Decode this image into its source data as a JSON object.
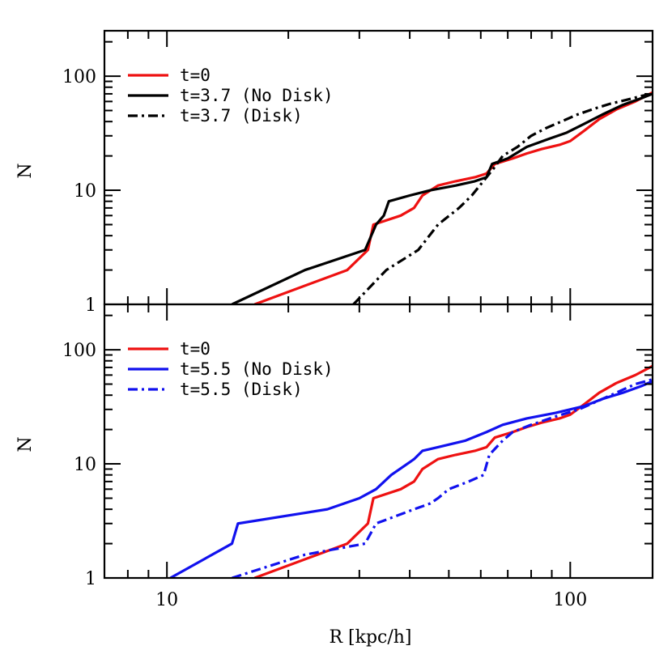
{
  "chart_data": [
    {
      "type": "line",
      "panel": "top",
      "xscale": "log",
      "yscale": "log",
      "xlim": [
        7,
        160
      ],
      "ylim": [
        1,
        250
      ],
      "xlabel": "R [kpc/h]",
      "ylabel": "N",
      "yticks": [
        1,
        10,
        100
      ],
      "yticklabels": [
        "1",
        "10",
        "100"
      ],
      "xticks": [
        10,
        100
      ],
      "xticklabels": [
        "10",
        "100"
      ],
      "show_xticklabels": false,
      "legend_position": "top-left",
      "series": [
        {
          "name": "t=0",
          "color": "#ee1111",
          "style": "solid",
          "points": [
            [
              16.5,
              1
            ],
            [
              28,
              2
            ],
            [
              31.5,
              3
            ],
            [
              32.5,
              5
            ],
            [
              38,
              6
            ],
            [
              41,
              7
            ],
            [
              43,
              9
            ],
            [
              47,
              11
            ],
            [
              52,
              12
            ],
            [
              58,
              13
            ],
            [
              62,
              14
            ],
            [
              65,
              17
            ],
            [
              72,
              19
            ],
            [
              78,
              21
            ],
            [
              85,
              23
            ],
            [
              94,
              25
            ],
            [
              100,
              27
            ],
            [
              108,
              33
            ],
            [
              118,
              42
            ],
            [
              130,
              51
            ],
            [
              145,
              60
            ],
            [
              160,
              72
            ]
          ]
        },
        {
          "name": "t=3.7 (No Disk)",
          "color": "#000000",
          "style": "solid",
          "points": [
            [
              14.5,
              1
            ],
            [
              22,
              2
            ],
            [
              31,
              3
            ],
            [
              33,
              5
            ],
            [
              34.5,
              6
            ],
            [
              35.5,
              8
            ],
            [
              40,
              9
            ],
            [
              45,
              10
            ],
            [
              52,
              11
            ],
            [
              58,
              12
            ],
            [
              62,
              13
            ],
            [
              64,
              17
            ],
            [
              70,
              19
            ],
            [
              78,
              24
            ],
            [
              88,
              28
            ],
            [
              98,
              32
            ],
            [
              108,
              38
            ],
            [
              120,
              46
            ],
            [
              135,
              56
            ],
            [
              150,
              64
            ],
            [
              160,
              70
            ]
          ]
        },
        {
          "name": "t=3.7 (Disk)",
          "color": "#000000",
          "style": "dashdot",
          "points": [
            [
              29,
              1
            ],
            [
              35,
              2
            ],
            [
              42,
              3
            ],
            [
              47,
              5
            ],
            [
              53,
              7
            ],
            [
              57,
              9
            ],
            [
              62,
              13
            ],
            [
              65,
              16
            ],
            [
              68,
              20
            ],
            [
              74,
              24
            ],
            [
              80,
              30
            ],
            [
              87,
              35
            ],
            [
              95,
              40
            ],
            [
              104,
              46
            ],
            [
              115,
              52
            ],
            [
              125,
              57
            ],
            [
              138,
              62
            ],
            [
              150,
              67
            ],
            [
              160,
              70
            ]
          ]
        }
      ]
    },
    {
      "type": "line",
      "panel": "bottom",
      "xscale": "log",
      "yscale": "log",
      "xlim": [
        7,
        160
      ],
      "ylim": [
        1,
        250
      ],
      "xlabel": "R [kpc/h]",
      "ylabel": "N",
      "yticks": [
        1,
        10,
        100
      ],
      "yticklabels": [
        "1",
        "10",
        "100"
      ],
      "xticks": [
        10,
        100
      ],
      "xticklabels": [
        "10",
        "100"
      ],
      "show_xticklabels": true,
      "legend_position": "top-left",
      "series": [
        {
          "name": "t=0",
          "color": "#ee1111",
          "style": "solid",
          "points": [
            [
              16.5,
              1
            ],
            [
              28,
              2
            ],
            [
              31.5,
              3
            ],
            [
              32.5,
              5
            ],
            [
              38,
              6
            ],
            [
              41,
              7
            ],
            [
              43,
              9
            ],
            [
              47,
              11
            ],
            [
              52,
              12
            ],
            [
              58,
              13
            ],
            [
              62,
              14
            ],
            [
              65,
              17
            ],
            [
              72,
              19
            ],
            [
              78,
              21
            ],
            [
              85,
              23
            ],
            [
              94,
              25
            ],
            [
              100,
              27
            ],
            [
              108,
              33
            ],
            [
              118,
              42
            ],
            [
              130,
              51
            ],
            [
              145,
              60
            ],
            [
              160,
              72
            ]
          ]
        },
        {
          "name": "t=5.5 (No Disk)",
          "color": "#1111ee",
          "style": "solid",
          "points": [
            [
              10.2,
              1
            ],
            [
              14.5,
              2
            ],
            [
              15,
              3
            ],
            [
              25,
              4
            ],
            [
              30,
              5
            ],
            [
              33,
              6
            ],
            [
              36,
              8
            ],
            [
              41,
              11
            ],
            [
              43,
              13
            ],
            [
              47,
              14
            ],
            [
              55,
              16
            ],
            [
              62,
              19
            ],
            [
              68,
              22
            ],
            [
              78,
              25
            ],
            [
              92,
              28
            ],
            [
              108,
              32
            ],
            [
              120,
              37
            ],
            [
              135,
              42
            ],
            [
              150,
              48
            ],
            [
              160,
              53
            ]
          ]
        },
        {
          "name": "t=5.5 (Disk)",
          "color": "#1111ee",
          "style": "dashdot",
          "points": [
            [
              14.5,
              1
            ],
            [
              22,
              1.6
            ],
            [
              31,
              2
            ],
            [
              33,
              3
            ],
            [
              41,
              4
            ],
            [
              45,
              4.5
            ],
            [
              47,
              5
            ],
            [
              50,
              6
            ],
            [
              56,
              7
            ],
            [
              61,
              8
            ],
            [
              63,
              12
            ],
            [
              68,
              16
            ],
            [
              72,
              19
            ],
            [
              80,
              22
            ],
            [
              92,
              26
            ],
            [
              105,
              30
            ],
            [
              118,
              36
            ],
            [
              130,
              42
            ],
            [
              145,
              50
            ],
            [
              160,
              55
            ]
          ]
        }
      ]
    }
  ]
}
